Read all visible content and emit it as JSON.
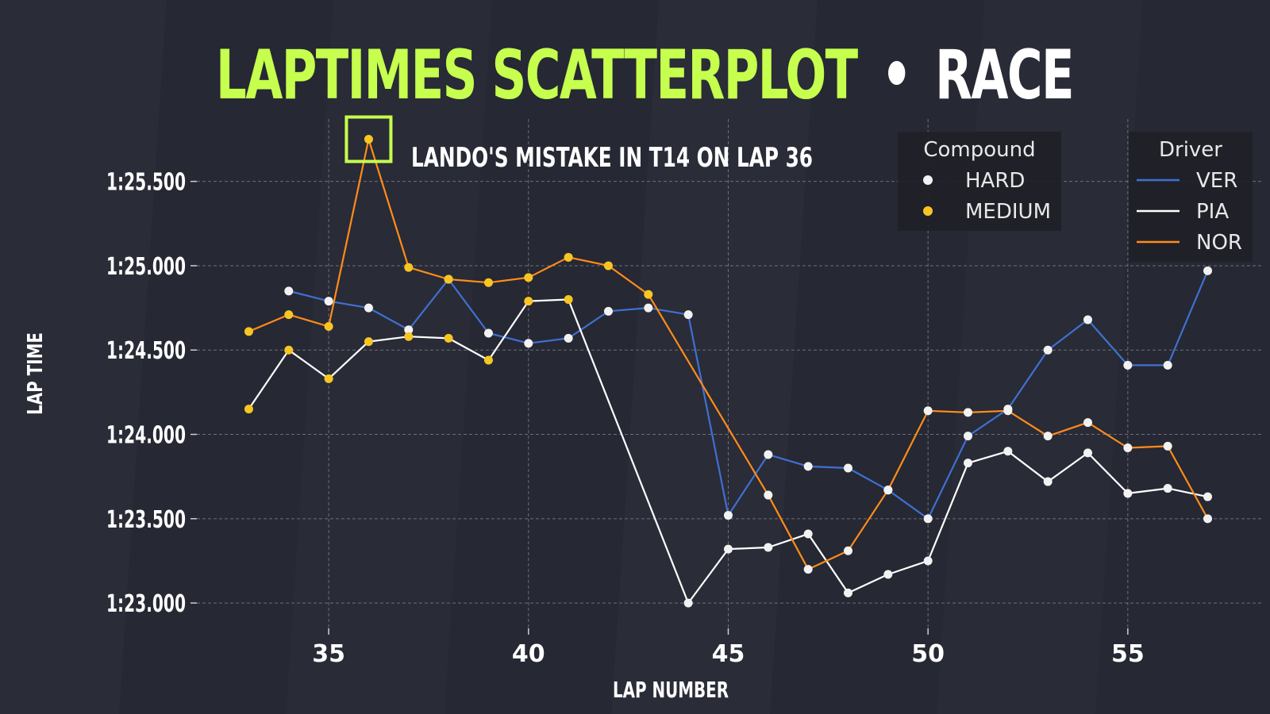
{
  "header": {
    "title_part1": "LAPTIMES SCATTERPLOT",
    "separator": "•",
    "title_part2": "RACE",
    "accent_color": "#c6ff4d",
    "text_color": "#ffffff"
  },
  "chart_data": {
    "type": "scatter",
    "title": "LAPTIMES SCATTERPLOT • RACE",
    "xlabel": "LAP NUMBER",
    "ylabel": "LAP TIME",
    "xlim": [
      31.7,
      58.4
    ],
    "ylim": [
      82.85,
      85.87
    ],
    "x_ticks": [
      35,
      40,
      45,
      50,
      55
    ],
    "y_ticks": [
      83.0,
      83.5,
      84.0,
      84.5,
      85.0,
      85.5
    ],
    "y_tick_labels": [
      "1:23.000",
      "1:23.500",
      "1:24.000",
      "1:24.500",
      "1:25.000",
      "1:25.500"
    ],
    "grid": true,
    "annotation": {
      "text": "LANDO'S MISTAKE IN T14 ON LAP 36",
      "x": 36,
      "y": 85.75
    },
    "compound_legend": {
      "title": "Compound",
      "placement": "top-right",
      "entries": [
        {
          "label": "HARD",
          "color": "#f2f2f2"
        },
        {
          "label": "MEDIUM",
          "color": "#f7c623"
        }
      ]
    },
    "driver_legend": {
      "title": "Driver",
      "placement": "top-right",
      "entries": [
        {
          "label": "VER",
          "color": "#3f70d1"
        },
        {
          "label": "PIA",
          "color": "#ffffff"
        },
        {
          "label": "NOR",
          "color": "#ff8c1a"
        }
      ]
    },
    "compound_colors": {
      "HARD": "#f2f2f2",
      "MEDIUM": "#f7c623"
    },
    "series": [
      {
        "name": "VER",
        "color": "#3f70d1",
        "points": [
          {
            "x": 34,
            "y": 84.85,
            "compound": "HARD"
          },
          {
            "x": 35,
            "y": 84.79,
            "compound": "HARD"
          },
          {
            "x": 36,
            "y": 84.75,
            "compound": "HARD"
          },
          {
            "x": 37,
            "y": 84.62,
            "compound": "HARD"
          },
          {
            "x": 38,
            "y": 84.92,
            "compound": "HARD"
          },
          {
            "x": 39,
            "y": 84.6,
            "compound": "HARD"
          },
          {
            "x": 40,
            "y": 84.54,
            "compound": "HARD"
          },
          {
            "x": 41,
            "y": 84.57,
            "compound": "HARD"
          },
          {
            "x": 42,
            "y": 84.73,
            "compound": "HARD"
          },
          {
            "x": 43,
            "y": 84.75,
            "compound": "HARD"
          },
          {
            "x": 44,
            "y": 84.71,
            "compound": "HARD"
          },
          {
            "x": 45,
            "y": 83.52,
            "compound": "HARD"
          },
          {
            "x": 46,
            "y": 83.88,
            "compound": "HARD"
          },
          {
            "x": 47,
            "y": 83.81,
            "compound": "HARD"
          },
          {
            "x": 48,
            "y": 83.8,
            "compound": "HARD"
          },
          {
            "x": 49,
            "y": 83.67,
            "compound": "HARD"
          },
          {
            "x": 50,
            "y": 83.5,
            "compound": "HARD"
          },
          {
            "x": 51,
            "y": 83.99,
            "compound": "HARD"
          },
          {
            "x": 52,
            "y": 84.15,
            "compound": "HARD"
          },
          {
            "x": 53,
            "y": 84.5,
            "compound": "HARD"
          },
          {
            "x": 54,
            "y": 84.68,
            "compound": "HARD"
          },
          {
            "x": 55,
            "y": 84.41,
            "compound": "HARD"
          },
          {
            "x": 56,
            "y": 84.41,
            "compound": "HARD"
          },
          {
            "x": 57,
            "y": 84.97,
            "compound": "HARD"
          }
        ]
      },
      {
        "name": "PIA",
        "color": "#ffffff",
        "points": [
          {
            "x": 33,
            "y": 84.15,
            "compound": "MEDIUM"
          },
          {
            "x": 34,
            "y": 84.5,
            "compound": "MEDIUM"
          },
          {
            "x": 35,
            "y": 84.33,
            "compound": "MEDIUM"
          },
          {
            "x": 36,
            "y": 84.55,
            "compound": "MEDIUM"
          },
          {
            "x": 37,
            "y": 84.58,
            "compound": "MEDIUM"
          },
          {
            "x": 38,
            "y": 84.57,
            "compound": "MEDIUM"
          },
          {
            "x": 39,
            "y": 84.44,
            "compound": "MEDIUM"
          },
          {
            "x": 40,
            "y": 84.79,
            "compound": "MEDIUM"
          },
          {
            "x": 41,
            "y": 84.8,
            "compound": "MEDIUM"
          },
          {
            "x": 44,
            "y": 83.0,
            "compound": "HARD"
          },
          {
            "x": 45,
            "y": 83.32,
            "compound": "HARD"
          },
          {
            "x": 46,
            "y": 83.33,
            "compound": "HARD"
          },
          {
            "x": 47,
            "y": 83.41,
            "compound": "HARD"
          },
          {
            "x": 48,
            "y": 83.06,
            "compound": "HARD"
          },
          {
            "x": 49,
            "y": 83.17,
            "compound": "HARD"
          },
          {
            "x": 50,
            "y": 83.25,
            "compound": "HARD"
          },
          {
            "x": 51,
            "y": 83.83,
            "compound": "HARD"
          },
          {
            "x": 52,
            "y": 83.9,
            "compound": "HARD"
          },
          {
            "x": 53,
            "y": 83.72,
            "compound": "HARD"
          },
          {
            "x": 54,
            "y": 83.89,
            "compound": "HARD"
          },
          {
            "x": 55,
            "y": 83.65,
            "compound": "HARD"
          },
          {
            "x": 56,
            "y": 83.68,
            "compound": "HARD"
          },
          {
            "x": 57,
            "y": 83.63,
            "compound": "HARD"
          }
        ]
      },
      {
        "name": "NOR",
        "color": "#ff8c1a",
        "points": [
          {
            "x": 33,
            "y": 84.61,
            "compound": "MEDIUM"
          },
          {
            "x": 34,
            "y": 84.71,
            "compound": "MEDIUM"
          },
          {
            "x": 35,
            "y": 84.64,
            "compound": "MEDIUM"
          },
          {
            "x": 36,
            "y": 85.75,
            "compound": "MEDIUM"
          },
          {
            "x": 37,
            "y": 84.99,
            "compound": "MEDIUM"
          },
          {
            "x": 38,
            "y": 84.92,
            "compound": "MEDIUM"
          },
          {
            "x": 39,
            "y": 84.9,
            "compound": "MEDIUM"
          },
          {
            "x": 40,
            "y": 84.93,
            "compound": "MEDIUM"
          },
          {
            "x": 41,
            "y": 85.05,
            "compound": "MEDIUM"
          },
          {
            "x": 42,
            "y": 85.0,
            "compound": "MEDIUM"
          },
          {
            "x": 43,
            "y": 84.83,
            "compound": "MEDIUM"
          },
          {
            "x": 46,
            "y": 83.64,
            "compound": "HARD"
          },
          {
            "x": 47,
            "y": 83.2,
            "compound": "HARD"
          },
          {
            "x": 48,
            "y": 83.31,
            "compound": "HARD"
          },
          {
            "x": 49,
            "y": 83.67,
            "compound": "HARD"
          },
          {
            "x": 50,
            "y": 84.14,
            "compound": "HARD"
          },
          {
            "x": 51,
            "y": 84.13,
            "compound": "HARD"
          },
          {
            "x": 52,
            "y": 84.14,
            "compound": "HARD"
          },
          {
            "x": 53,
            "y": 83.99,
            "compound": "HARD"
          },
          {
            "x": 54,
            "y": 84.07,
            "compound": "HARD"
          },
          {
            "x": 55,
            "y": 83.92,
            "compound": "HARD"
          },
          {
            "x": 56,
            "y": 83.93,
            "compound": "HARD"
          },
          {
            "x": 57,
            "y": 83.5,
            "compound": "HARD"
          }
        ]
      }
    ]
  }
}
